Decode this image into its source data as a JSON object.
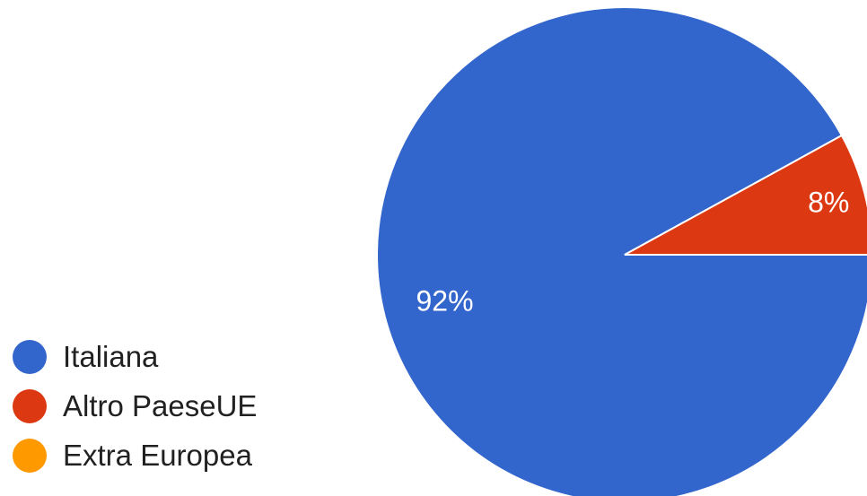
{
  "chart_data": {
    "type": "pie",
    "categories": [
      "Italiana",
      "Altro PaeseUE",
      "Extra Europea"
    ],
    "values": [
      92,
      8,
      0
    ],
    "data_labels": [
      "92%",
      "8%",
      ""
    ],
    "colors": [
      "#3366cc",
      "#dc3912",
      "#ff9900"
    ],
    "legend_position": "left-bottom"
  },
  "legend": {
    "items": [
      {
        "label": "Italiana",
        "color": "#3366cc"
      },
      {
        "label": "Altro PaeseUE",
        "color": "#dc3912"
      },
      {
        "label": "Extra Europea",
        "color": "#ff9900"
      }
    ]
  }
}
